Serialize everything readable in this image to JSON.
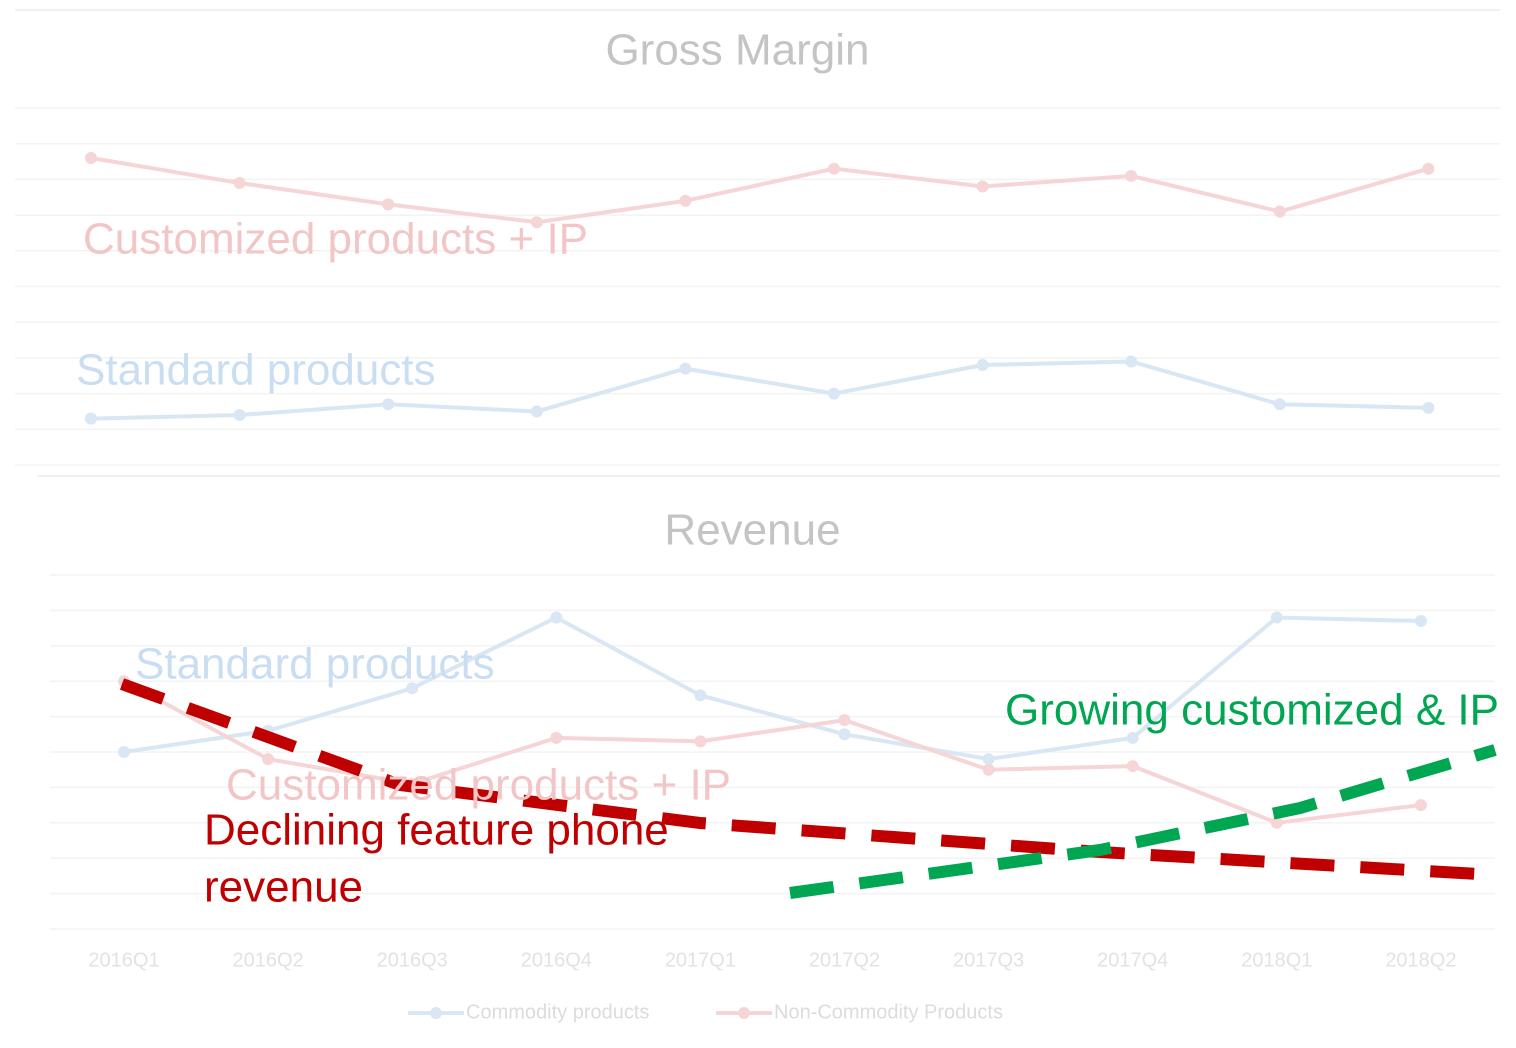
{
  "chart_data": [
    {
      "type": "line",
      "title": "Gross Margin",
      "categories": [
        "2016Q1",
        "2016Q2",
        "2016Q3",
        "2016Q4",
        "2017Q1",
        "2017Q2",
        "2017Q3",
        "2017Q4",
        "2018Q1",
        "2018Q2"
      ],
      "series": [
        {
          "name": "Commodity products",
          "color": "#d9e6f4",
          "values": [
            1.3,
            1.4,
            1.7,
            1.5,
            2.7,
            2.0,
            2.8,
            2.9,
            1.7,
            1.6
          ]
        },
        {
          "name": "Non-Commodity Products",
          "color": "#f5d5d5",
          "values": [
            8.6,
            7.9,
            7.3,
            6.8,
            7.4,
            8.3,
            7.8,
            8.1,
            7.1,
            8.3
          ]
        }
      ],
      "ylim": [
        0,
        10
      ],
      "yticks": [
        0,
        1,
        2,
        3,
        4,
        5,
        6,
        7,
        8,
        9,
        10
      ],
      "grid": true,
      "annotations": [
        {
          "text": "Customized products + IP",
          "color": "#f2c6c6"
        },
        {
          "text": "Standard products",
          "color": "#c9def2"
        }
      ]
    },
    {
      "type": "line",
      "title": "Revenue",
      "categories": [
        "2016Q1",
        "2016Q2",
        "2016Q3",
        "2016Q4",
        "2017Q1",
        "2017Q2",
        "2017Q3",
        "2017Q4",
        "2018Q1",
        "2018Q2"
      ],
      "series": [
        {
          "name": "Commodity products",
          "color": "#d9e6f4",
          "values": [
            5.0,
            5.6,
            6.8,
            8.8,
            6.6,
            5.5,
            4.8,
            5.4,
            8.8,
            8.7
          ]
        },
        {
          "name": "Non-Commodity Products",
          "color": "#f5d5d5",
          "values": [
            7.0,
            4.8,
            4.1,
            5.4,
            5.3,
            5.9,
            4.5,
            4.6,
            3.0,
            3.5
          ]
        }
      ],
      "ylim": [
        0,
        10
      ],
      "yticks": [
        0,
        1,
        2,
        3,
        4,
        5,
        6,
        7,
        8,
        9,
        10
      ],
      "grid": true,
      "legend": "bottom",
      "annotations": [
        {
          "text": "Standard products",
          "color": "#c9def2"
        },
        {
          "text": "Customized products + IP",
          "color": "#f2c6c6"
        },
        {
          "lines": [
            "Declining feature phone",
            "revenue"
          ],
          "color": "#c00000"
        },
        {
          "text": "Growing customized & IP",
          "color": "#00a651"
        }
      ]
    }
  ]
}
